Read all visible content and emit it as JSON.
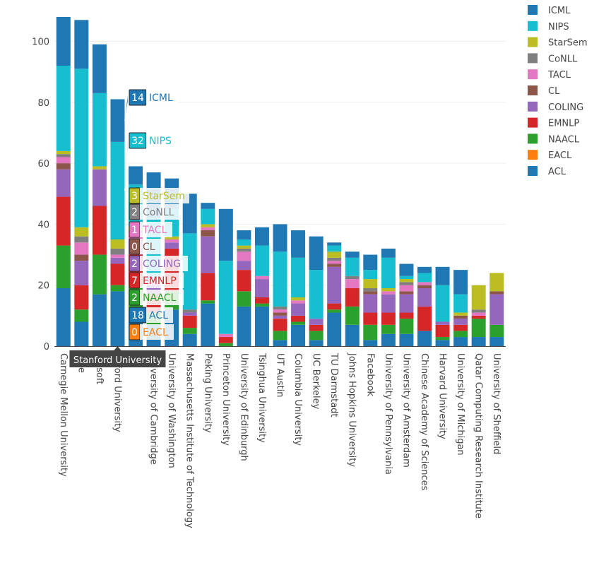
{
  "chart_data": {
    "type": "bar",
    "stacked": true,
    "title": "",
    "xlabel": "",
    "ylabel": "",
    "ylim": [
      0,
      110
    ],
    "yticks": [
      0,
      20,
      40,
      60,
      80,
      100
    ],
    "legend_position": "top-right",
    "categories": [
      "Carnegie Mellon University",
      "Google",
      "Microsoft",
      "Stanford University",
      "IBM",
      "University of Cambridge",
      "University of Washington",
      "Massachusetts Institute of Technology",
      "Peking University",
      "Princeton University",
      "University of Edinburgh",
      "Tsinghua University",
      "UT Austin",
      "Columbia University",
      "UC Berkeley",
      "TU Darmstadt",
      "Johns Hopkins University",
      "Facebook",
      "University of Pennsylvania",
      "University of Amsterdam",
      "Chinese Academy of Sciences",
      "Harvard University",
      "University of Michigan",
      "Qatar Computing Research Institute",
      "University of Sheffield"
    ],
    "category_labels_shown": [
      "Carnegie Mellon University",
      "ogle",
      "crosoft",
      "anford University",
      "M",
      "University of Cambridge",
      "University of Washington",
      "Massachusetts Institute of Technology",
      "Peking University",
      "Princeton University",
      "University of Edinburgh",
      "Tsinghua University",
      "UT Austin",
      "Columbia University",
      "UC Berkeley",
      "TU Darmstadt",
      "Johns Hopkins University",
      "Facebook",
      "University of Pennsylvania",
      "University of Amsterdam",
      "Chinese Academy of Sciences",
      "Harvard University",
      "University of Michigan",
      "Qatar Computing Research Institute",
      "University of Sheffield"
    ],
    "stack_order": [
      "ACL",
      "EACL",
      "NAACL",
      "EMNLP",
      "COLING",
      "CL",
      "TACL",
      "CoNLL",
      "StarSem",
      "NIPS",
      "ICML"
    ],
    "series": [
      {
        "name": "ACL",
        "color": "#1f77b4",
        "values": [
          19,
          8,
          17,
          18,
          12,
          7,
          12,
          4,
          14,
          0,
          13,
          13,
          2,
          7,
          2,
          11,
          7,
          2,
          4,
          4,
          5,
          2,
          3,
          3,
          3
        ]
      },
      {
        "name": "EACL",
        "color": "#ff7f0e",
        "values": [
          0,
          0,
          0,
          0,
          0,
          0,
          0,
          0,
          0,
          0,
          0,
          0,
          0,
          0,
          0,
          0,
          0,
          0,
          0,
          0,
          0,
          0,
          0,
          0,
          0
        ]
      },
      {
        "name": "NAACL",
        "color": "#2ca02c",
        "values": [
          14,
          4,
          13,
          2,
          8,
          4,
          6,
          2,
          1,
          1,
          5,
          1,
          3,
          1,
          3,
          1,
          6,
          5,
          3,
          5,
          0,
          1,
          2,
          6,
          4
        ]
      },
      {
        "name": "EMNLP",
        "color": "#d62728",
        "values": [
          16,
          8,
          16,
          7,
          10,
          6,
          14,
          4,
          9,
          2,
          7,
          2,
          4,
          2,
          2,
          2,
          6,
          4,
          4,
          2,
          8,
          4,
          2,
          1,
          0
        ]
      },
      {
        "name": "COLING",
        "color": "#9467bd",
        "values": [
          9,
          8,
          12,
          2,
          5,
          3,
          2,
          1,
          12,
          0,
          3,
          6,
          1,
          4,
          2,
          12,
          0,
          6,
          6,
          6,
          6,
          1,
          2,
          0,
          10
        ]
      },
      {
        "name": "CL",
        "color": "#8c564b",
        "values": [
          2,
          2,
          0,
          0,
          0,
          0,
          0,
          0,
          2,
          0,
          0,
          0,
          1,
          0,
          0,
          1,
          0,
          1,
          0,
          1,
          1,
          0,
          1,
          0,
          1
        ]
      },
      {
        "name": "TACL",
        "color": "#e377c2",
        "values": [
          2,
          4,
          0,
          1,
          2,
          1,
          1,
          0,
          1,
          1,
          3,
          1,
          1,
          1,
          0,
          1,
          3,
          0,
          1,
          2,
          1,
          0,
          0,
          1,
          0
        ]
      },
      {
        "name": "CoNLL",
        "color": "#7f7f7f",
        "values": [
          1,
          2,
          0,
          2,
          1,
          0,
          0,
          1,
          0,
          0,
          1,
          0,
          1,
          0,
          0,
          1,
          1,
          1,
          0,
          1,
          0,
          0,
          0,
          1,
          0
        ]
      },
      {
        "name": "StarSem",
        "color": "#bcbd22",
        "values": [
          1,
          3,
          1,
          3,
          1,
          0,
          1,
          0,
          1,
          0,
          1,
          0,
          0,
          1,
          0,
          2,
          0,
          3,
          1,
          1,
          0,
          0,
          1,
          8,
          6
        ]
      },
      {
        "name": "NIPS",
        "color": "#17becf",
        "values": [
          28,
          52,
          24,
          32,
          14,
          21,
          9,
          25,
          5,
          24,
          2,
          10,
          18,
          13,
          16,
          2,
          6,
          3,
          10,
          1,
          3,
          12,
          6,
          0,
          0
        ]
      },
      {
        "name": "ICML",
        "color": "#1f77b4",
        "values": [
          16,
          16,
          16,
          14,
          6,
          15,
          10,
          13,
          2,
          17,
          3,
          6,
          9,
          9,
          11,
          1,
          2,
          5,
          3,
          4,
          2,
          6,
          8,
          0,
          0
        ]
      }
    ],
    "hover": {
      "category": "Stanford University",
      "items": [
        {
          "name": "ICML",
          "value": 14,
          "color": "#1f77b4"
        },
        {
          "name": "NIPS",
          "value": 32,
          "color": "#17becf"
        },
        {
          "name": "StarSem",
          "value": 3,
          "color": "#bcbd22"
        },
        {
          "name": "CoNLL",
          "value": 2,
          "color": "#7f7f7f"
        },
        {
          "name": "TACL",
          "value": 1,
          "color": "#e377c2"
        },
        {
          "name": "CL",
          "value": 0,
          "color": "#8c564b"
        },
        {
          "name": "COLING",
          "value": 2,
          "color": "#9467bd"
        },
        {
          "name": "EMNLP",
          "value": 7,
          "color": "#d62728"
        },
        {
          "name": "NAACL",
          "value": 2,
          "color": "#2ca02c"
        },
        {
          "name": "ACL",
          "value": 18,
          "color": "#1f77b4"
        },
        {
          "name": "EACL",
          "value": 0,
          "color": "#ff7f0e"
        }
      ]
    },
    "legend": [
      {
        "name": "ICML",
        "color": "#1f77b4"
      },
      {
        "name": "NIPS",
        "color": "#17becf"
      },
      {
        "name": "StarSem",
        "color": "#bcbd22"
      },
      {
        "name": "CoNLL",
        "color": "#7f7f7f"
      },
      {
        "name": "TACL",
        "color": "#e377c2"
      },
      {
        "name": "CL",
        "color": "#8c564b"
      },
      {
        "name": "COLING",
        "color": "#9467bd"
      },
      {
        "name": "EMNLP",
        "color": "#d62728"
      },
      {
        "name": "NAACL",
        "color": "#2ca02c"
      },
      {
        "name": "EACL",
        "color": "#ff7f0e"
      },
      {
        "name": "ACL",
        "color": "#1f77b4"
      }
    ]
  }
}
